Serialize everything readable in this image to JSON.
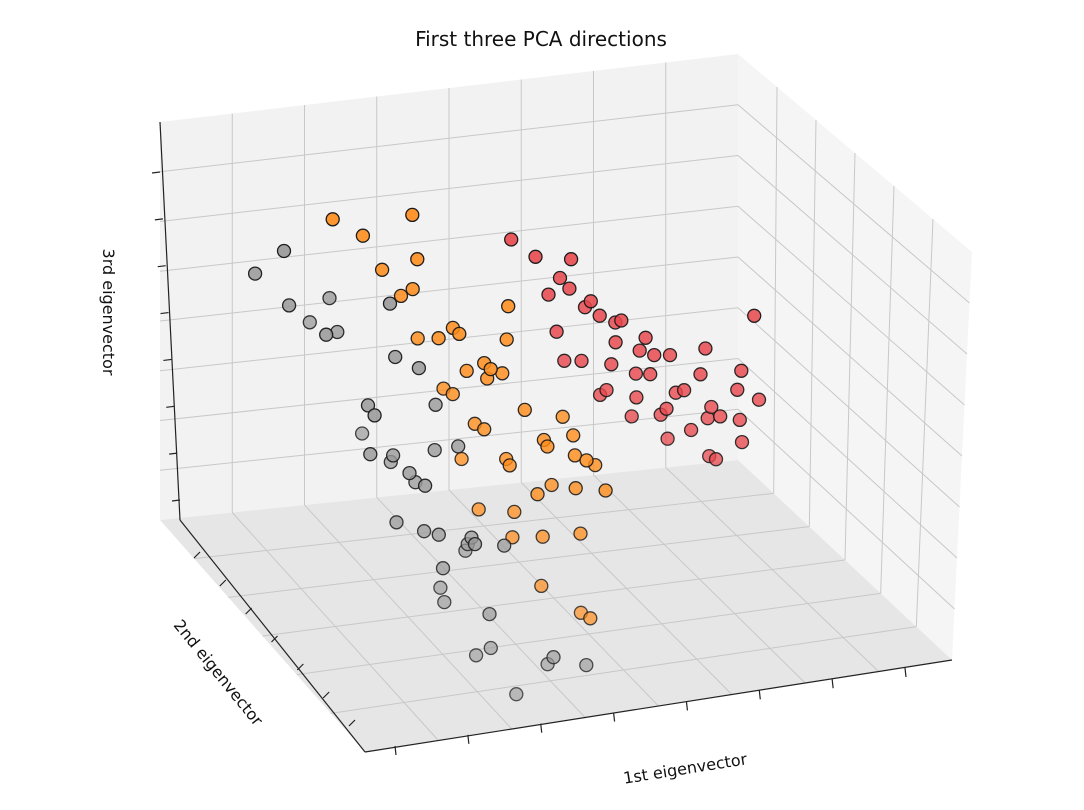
{
  "chart_data": {
    "type": "scatter",
    "dimensions": 3,
    "title": "First three PCA directions",
    "xlabel": "1st eigenvector",
    "ylabel": "2nd eigenvector",
    "zlabel": "3rd eigenvector",
    "grid": true,
    "tick_labels_shown": false,
    "colors": {
      "class_0": "#999999",
      "class_1": "#ff8c1a",
      "class_2": "#e8484d"
    },
    "series": [
      {
        "color": "#999999",
        "points": [
          [
            0.12,
            0.3,
            0.78
          ],
          [
            0.15,
            0.55,
            0.8
          ],
          [
            0.2,
            0.35,
            0.72
          ],
          [
            0.25,
            0.5,
            0.82
          ],
          [
            0.28,
            0.2,
            0.76
          ],
          [
            0.3,
            0.45,
            0.7
          ],
          [
            0.22,
            0.7,
            0.6
          ],
          [
            0.35,
            0.3,
            0.6
          ],
          [
            0.4,
            0.55,
            0.42
          ],
          [
            0.45,
            0.35,
            0.44
          ],
          [
            0.38,
            0.6,
            0.3
          ],
          [
            0.42,
            0.4,
            0.35
          ],
          [
            0.48,
            0.55,
            0.36
          ],
          [
            0.5,
            0.3,
            0.38
          ],
          [
            0.46,
            0.62,
            0.28
          ],
          [
            0.52,
            0.45,
            0.32
          ],
          [
            0.55,
            0.35,
            0.55
          ],
          [
            0.58,
            0.5,
            0.4
          ],
          [
            0.44,
            0.75,
            0.18
          ],
          [
            0.5,
            0.65,
            0.2
          ],
          [
            0.55,
            0.55,
            0.22
          ],
          [
            0.6,
            0.4,
            0.25
          ],
          [
            0.48,
            0.85,
            0.1
          ],
          [
            0.56,
            0.8,
            0.08
          ],
          [
            0.62,
            0.7,
            0.1
          ],
          [
            0.66,
            0.55,
            0.2
          ],
          [
            0.7,
            0.5,
            0.15
          ],
          [
            0.58,
            0.9,
            0.02
          ],
          [
            0.72,
            0.85,
            0.05
          ],
          [
            0.8,
            0.75,
            0.0
          ],
          [
            0.88,
            0.8,
            0.0
          ],
          [
            0.62,
            0.45,
            0.48
          ],
          [
            0.66,
            0.5,
            0.4
          ],
          [
            0.4,
            0.8,
            0.25
          ],
          [
            0.52,
            0.75,
            0.3
          ],
          [
            0.57,
            0.68,
            0.27
          ],
          [
            0.45,
            0.48,
            0.39
          ],
          [
            0.74,
            0.6,
            0.2
          ],
          [
            0.6,
            0.25,
            0.62
          ],
          [
            0.64,
            0.33,
            0.5
          ]
        ]
      },
      {
        "color": "#ff8c1a",
        "points": [
          [
            0.45,
            0.2,
            0.82
          ],
          [
            0.52,
            0.25,
            0.8
          ],
          [
            0.55,
            0.3,
            0.74
          ],
          [
            0.58,
            0.35,
            0.7
          ],
          [
            0.6,
            0.4,
            0.62
          ],
          [
            0.65,
            0.3,
            0.68
          ],
          [
            0.7,
            0.25,
            0.72
          ],
          [
            0.72,
            0.2,
            0.8
          ],
          [
            0.75,
            0.35,
            0.6
          ],
          [
            0.8,
            0.3,
            0.55
          ],
          [
            0.85,
            0.35,
            0.5
          ],
          [
            0.9,
            0.3,
            0.45
          ],
          [
            0.68,
            0.45,
            0.5
          ],
          [
            0.72,
            0.5,
            0.45
          ],
          [
            0.78,
            0.45,
            0.4
          ],
          [
            0.82,
            0.5,
            0.35
          ],
          [
            0.86,
            0.45,
            0.3
          ],
          [
            0.92,
            0.5,
            0.25
          ],
          [
            0.95,
            0.4,
            0.4
          ],
          [
            0.98,
            0.45,
            0.35
          ],
          [
            1.02,
            0.4,
            0.3
          ],
          [
            1.05,
            0.5,
            0.25
          ],
          [
            0.66,
            0.6,
            0.3
          ],
          [
            0.74,
            0.65,
            0.25
          ],
          [
            0.8,
            0.7,
            0.15
          ],
          [
            0.9,
            0.75,
            0.1
          ],
          [
            0.96,
            0.7,
            0.05
          ],
          [
            1.0,
            0.6,
            0.2
          ],
          [
            0.62,
            0.5,
            0.55
          ],
          [
            0.88,
            0.4,
            0.5
          ],
          [
            0.93,
            0.35,
            0.55
          ],
          [
            0.97,
            0.3,
            0.6
          ],
          [
            1.08,
            0.45,
            0.35
          ],
          [
            1.12,
            0.5,
            0.3
          ],
          [
            1.15,
            0.4,
            0.25
          ],
          [
            1.18,
            0.45,
            0.2
          ],
          [
            0.7,
            0.35,
            0.58
          ],
          [
            0.76,
            0.4,
            0.52
          ],
          [
            0.84,
            0.38,
            0.48
          ],
          [
            1.03,
            0.48,
            0.42
          ],
          [
            1.1,
            0.42,
            0.28
          ],
          [
            0.64,
            0.55,
            0.4
          ],
          [
            0.78,
            0.6,
            0.28
          ],
          [
            0.86,
            0.62,
            0.22
          ],
          [
            0.94,
            0.55,
            0.3
          ]
        ]
      },
      {
        "color": "#e8484d",
        "points": [
          [
            1.05,
            0.2,
            0.7
          ],
          [
            1.1,
            0.25,
            0.68
          ],
          [
            1.15,
            0.3,
            0.65
          ],
          [
            1.2,
            0.35,
            0.6
          ],
          [
            1.25,
            0.3,
            0.58
          ],
          [
            1.3,
            0.35,
            0.55
          ],
          [
            1.35,
            0.3,
            0.52
          ],
          [
            1.4,
            0.35,
            0.5
          ],
          [
            1.45,
            0.4,
            0.48
          ],
          [
            1.1,
            0.35,
            0.55
          ],
          [
            1.15,
            0.4,
            0.5
          ],
          [
            1.2,
            0.45,
            0.45
          ],
          [
            1.25,
            0.4,
            0.48
          ],
          [
            1.3,
            0.45,
            0.42
          ],
          [
            1.35,
            0.5,
            0.4
          ],
          [
            1.4,
            0.45,
            0.38
          ],
          [
            1.45,
            0.5,
            0.35
          ],
          [
            1.5,
            0.55,
            0.3
          ],
          [
            1.18,
            0.3,
            0.62
          ],
          [
            1.22,
            0.25,
            0.66
          ],
          [
            1.28,
            0.38,
            0.52
          ],
          [
            1.32,
            0.42,
            0.46
          ],
          [
            1.38,
            0.4,
            0.44
          ],
          [
            1.42,
            0.36,
            0.46
          ],
          [
            1.48,
            0.42,
            0.4
          ],
          [
            1.52,
            0.48,
            0.36
          ],
          [
            1.55,
            0.4,
            0.42
          ],
          [
            1.6,
            0.35,
            0.45
          ],
          [
            1.58,
            0.45,
            0.34
          ],
          [
            1.62,
            0.5,
            0.3
          ],
          [
            1.66,
            0.42,
            0.38
          ],
          [
            1.7,
            0.38,
            0.4
          ],
          [
            1.12,
            0.28,
            0.6
          ],
          [
            1.26,
            0.33,
            0.56
          ],
          [
            1.36,
            0.38,
            0.49
          ],
          [
            1.44,
            0.44,
            0.41
          ],
          [
            1.54,
            0.47,
            0.38
          ],
          [
            1.64,
            0.46,
            0.33
          ],
          [
            1.72,
            0.44,
            0.36
          ],
          [
            1.8,
            0.3,
            0.48
          ],
          [
            1.08,
            0.42,
            0.52
          ],
          [
            1.16,
            0.48,
            0.46
          ],
          [
            1.24,
            0.52,
            0.42
          ],
          [
            1.34,
            0.55,
            0.37
          ],
          [
            1.46,
            0.58,
            0.33
          ]
        ]
      }
    ]
  }
}
